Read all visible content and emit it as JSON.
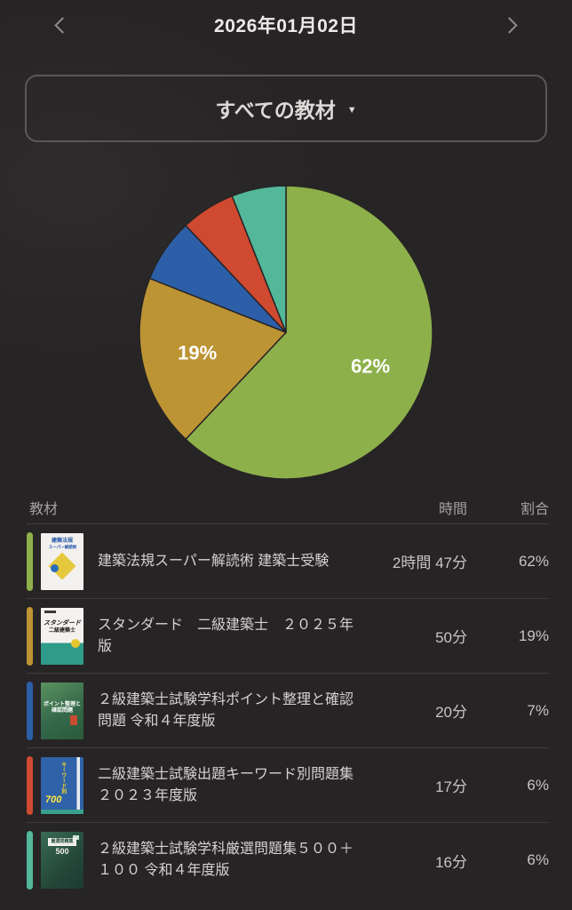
{
  "header": {
    "date": "2026年01月02日",
    "prev_icon": "chevron-left",
    "next_icon": "chevron-right"
  },
  "filter": {
    "label": "すべての教材",
    "caret": "▼",
    "caret_icon": "caret-down"
  },
  "chart_data": {
    "type": "pie",
    "title": "",
    "categories": [
      "建築法規スーパー解読術 建築士受験",
      "スタンダード　二級建築士　２０２５年版",
      "２級建築士試験学科ポイント整理と確認問題 令和４年度版",
      "二級建築士試験出題キーワード別問題集　２０２３年度版",
      "２級建築士試験学科厳選問題集５００＋１００ 令和４年度版"
    ],
    "values": [
      62,
      19,
      7,
      6,
      6
    ],
    "unit": "%",
    "colors": [
      "#8db04b",
      "#bd9434",
      "#2d5fa9",
      "#cf4a30",
      "#53b799"
    ],
    "labels_shown": [
      "62%",
      "19%",
      "",
      "",
      ""
    ],
    "label_color": "#ffffff",
    "start_angle": 0,
    "direction": "clockwise",
    "stroke_color": "#272425",
    "legend": "none"
  },
  "table": {
    "headers": {
      "material": "教材",
      "time": "時間",
      "ratio": "割合"
    },
    "rows": [
      {
        "title": "建築法規スーパー解読術 建築士受験",
        "time": "2時間 47分",
        "ratio": "62%",
        "accent": "#8db04b",
        "cover_lines": [
          "建築法規",
          "スーパー解読術"
        ]
      },
      {
        "title": "スタンダード　二級建築士　２０２５年版",
        "time": "50分",
        "ratio": "19%",
        "accent": "#bd9434",
        "cover_lines": [
          "スタンダード",
          "二級建築士"
        ]
      },
      {
        "title": "２級建築士試験学科ポイント整理と確認問題 令和４年度版",
        "time": "20分",
        "ratio": "7%",
        "accent": "#2d5fa9",
        "cover_lines": [
          "ポイント整理と",
          "確認問題"
        ]
      },
      {
        "title": "二級建築士試験出題キーワード別問題集　２０２３年度版",
        "time": "17分",
        "ratio": "6%",
        "accent": "#cf4a30",
        "cover_lines": [
          "キーワード別",
          "700"
        ]
      },
      {
        "title": "２級建築士試験学科厳選問題集５００＋１００ 令和４年度版",
        "time": "16分",
        "ratio": "6%",
        "accent": "#53b799",
        "cover_lines": [
          "厳選問題集",
          "500"
        ]
      }
    ]
  },
  "colors": {
    "background": "#272425",
    "text_primary": "#ece9e8",
    "text_secondary": "#a3a09f",
    "divider": "#3c3a3b",
    "border": "#595757"
  }
}
